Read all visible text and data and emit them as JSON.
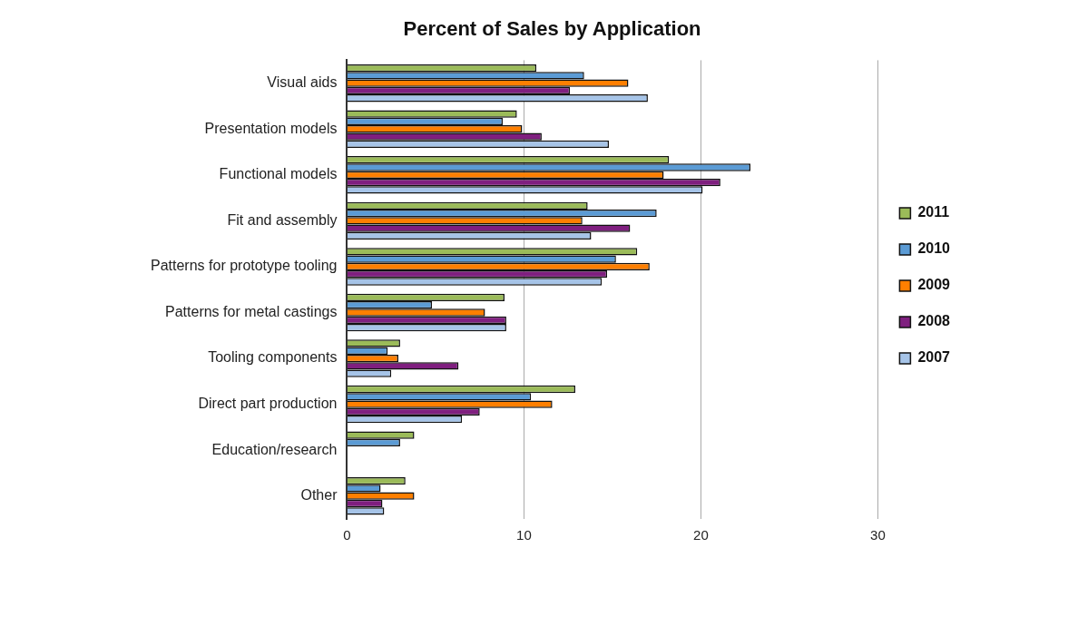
{
  "chart_data": {
    "type": "bar",
    "orientation": "horizontal",
    "title": "Percent of Sales by Application",
    "categories": [
      "Visual aids",
      "Presentation models",
      "Functional models",
      "Fit and assembly",
      "Patterns for prototype tooling",
      "Patterns for metal castings",
      "Tooling components",
      "Direct part production",
      "Education/research",
      "Other"
    ],
    "series": [
      {
        "name": "2011",
        "color": "#9bbb59",
        "values": [
          10.7,
          9.6,
          18.2,
          13.6,
          16.4,
          8.9,
          3.0,
          12.9,
          3.8,
          3.3
        ]
      },
      {
        "name": "2010",
        "color": "#5b9bd5",
        "values": [
          13.4,
          8.8,
          22.8,
          17.5,
          15.2,
          4.8,
          2.3,
          10.4,
          3.0,
          1.9
        ]
      },
      {
        "name": "2009",
        "color": "#ff7f00",
        "values": [
          15.9,
          9.9,
          17.9,
          13.3,
          17.1,
          7.8,
          2.9,
          11.6,
          null,
          3.8
        ]
      },
      {
        "name": "2008",
        "color": "#7f1f7f",
        "values": [
          12.6,
          11.0,
          21.1,
          16.0,
          14.7,
          9.0,
          6.3,
          7.5,
          null,
          2.0
        ]
      },
      {
        "name": "2007",
        "color": "#a6c4e8",
        "values": [
          17.0,
          14.8,
          20.1,
          13.8,
          14.4,
          9.0,
          2.5,
          6.5,
          null,
          2.1
        ]
      }
    ],
    "xlim": [
      0,
      30
    ],
    "xticks": [
      0,
      10,
      20,
      30
    ],
    "grid": "x",
    "legend": "right"
  }
}
